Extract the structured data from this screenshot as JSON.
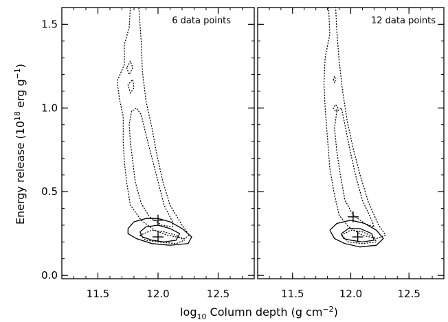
{
  "chart_data": {
    "type": "contour",
    "ylabel": {
      "main": "Energy release (10",
      "sup1": "18",
      "mid": " erg g",
      "sup2": "−1",
      "end": ")"
    },
    "xlabel": {
      "pre": "log",
      "sub": "10",
      "main": " Column depth (g cm",
      "sup": "−2",
      "end": ")"
    },
    "xlim": [
      11.2,
      12.8
    ],
    "ylim": [
      -0.02,
      1.6
    ],
    "xticks": [
      {
        "value": 11.5,
        "label": "11.5"
      },
      {
        "value": 12.0,
        "label": "12.0"
      },
      {
        "value": 12.5,
        "label": "12.5"
      }
    ],
    "yticks": [
      {
        "value": 0.0,
        "label": "0.0"
      },
      {
        "value": 0.5,
        "label": "0.5"
      },
      {
        "value": 1.0,
        "label": "1.0"
      },
      {
        "value": 1.5,
        "label": "1.5"
      }
    ],
    "panels": [
      {
        "label": "6 data points",
        "markers": [
          {
            "x": 12.0,
            "y": 0.33
          },
          {
            "x": 12.0,
            "y": 0.23
          }
        ],
        "solid_contours": [
          [
            [
              11.75,
              0.28
            ],
            [
              11.8,
              0.32
            ],
            [
              11.9,
              0.34
            ],
            [
              12.0,
              0.34
            ],
            [
              12.1,
              0.32
            ],
            [
              12.2,
              0.28
            ],
            [
              12.28,
              0.23
            ],
            [
              12.25,
              0.19
            ],
            [
              12.1,
              0.18
            ],
            [
              11.95,
              0.19
            ],
            [
              11.82,
              0.22
            ],
            [
              11.75,
              0.25
            ],
            [
              11.75,
              0.28
            ]
          ],
          [
            [
              11.85,
              0.26
            ],
            [
              11.9,
              0.29
            ],
            [
              12.0,
              0.3
            ],
            [
              12.1,
              0.28
            ],
            [
              12.18,
              0.25
            ],
            [
              12.15,
              0.21
            ],
            [
              12.05,
              0.2
            ],
            [
              11.95,
              0.21
            ],
            [
              11.87,
              0.23
            ],
            [
              11.85,
              0.26
            ]
          ]
        ],
        "dotted_contours": [
          [
            [
              11.77,
              1.6
            ],
            [
              11.76,
              1.48
            ],
            [
              11.72,
              1.38
            ],
            [
              11.72,
              1.26
            ],
            [
              11.66,
              1.16
            ],
            [
              11.68,
              1.05
            ],
            [
              11.71,
              0.95
            ],
            [
              11.71,
              0.8
            ],
            [
              11.72,
              0.68
            ],
            [
              11.74,
              0.55
            ],
            [
              11.77,
              0.42
            ],
            [
              11.86,
              0.33
            ],
            [
              11.97,
              0.27
            ],
            [
              12.08,
              0.24
            ],
            [
              12.22,
              0.22
            ],
            [
              12.26,
              0.24
            ],
            [
              12.2,
              0.3
            ],
            [
              12.1,
              0.42
            ],
            [
              12.04,
              0.56
            ],
            [
              11.99,
              0.72
            ],
            [
              11.95,
              0.88
            ],
            [
              11.9,
              1.04
            ],
            [
              11.87,
              1.22
            ],
            [
              11.86,
              1.4
            ],
            [
              11.84,
              1.6
            ]
          ],
          [
            [
              11.78,
              0.98
            ],
            [
              11.76,
              0.9
            ],
            [
              11.77,
              0.8
            ],
            [
              11.79,
              0.68
            ],
            [
              11.81,
              0.56
            ],
            [
              11.86,
              0.43
            ],
            [
              11.93,
              0.35
            ],
            [
              12.03,
              0.3
            ],
            [
              12.12,
              0.29
            ],
            [
              12.12,
              0.32
            ],
            [
              12.05,
              0.42
            ],
            [
              12.0,
              0.56
            ],
            [
              11.95,
              0.7
            ],
            [
              11.9,
              0.84
            ],
            [
              11.86,
              0.96
            ],
            [
              11.82,
              1.0
            ],
            [
              11.78,
              0.98
            ]
          ],
          [
            [
              11.85,
              0.24
            ],
            [
              11.95,
              0.27
            ],
            [
              12.05,
              0.26
            ],
            [
              12.15,
              0.24
            ],
            [
              12.22,
              0.21
            ],
            [
              12.15,
              0.19
            ],
            [
              12.0,
              0.2
            ],
            [
              11.9,
              0.21
            ],
            [
              11.85,
              0.24
            ]
          ],
          [
            [
              11.75,
              1.14
            ],
            [
              11.77,
              1.09
            ],
            [
              11.8,
              1.12
            ],
            [
              11.79,
              1.17
            ],
            [
              11.75,
              1.14
            ]
          ],
          [
            [
              11.74,
              1.24
            ],
            [
              11.76,
              1.2
            ],
            [
              11.79,
              1.24
            ],
            [
              11.77,
              1.28
            ],
            [
              11.74,
              1.24
            ]
          ]
        ]
      },
      {
        "label": "12 data points",
        "markers": [
          {
            "x": 12.02,
            "y": 0.35
          },
          {
            "x": 12.06,
            "y": 0.23
          }
        ],
        "solid_contours": [
          [
            [
              11.82,
              0.27
            ],
            [
              11.88,
              0.31
            ],
            [
              12.0,
              0.33
            ],
            [
              12.12,
              0.31
            ],
            [
              12.22,
              0.27
            ],
            [
              12.28,
              0.22
            ],
            [
              12.22,
              0.18
            ],
            [
              12.08,
              0.17
            ],
            [
              11.95,
              0.19
            ],
            [
              11.86,
              0.22
            ],
            [
              11.82,
              0.27
            ]
          ],
          [
            [
              11.92,
              0.25
            ],
            [
              11.98,
              0.28
            ],
            [
              12.08,
              0.28
            ],
            [
              12.18,
              0.25
            ],
            [
              12.2,
              0.21
            ],
            [
              12.1,
              0.2
            ],
            [
              12.0,
              0.21
            ],
            [
              11.94,
              0.22
            ],
            [
              11.92,
              0.25
            ]
          ]
        ],
        "dotted_contours": [
          [
            [
              11.81,
              1.6
            ],
            [
              11.82,
              1.44
            ],
            [
              11.78,
              1.3
            ],
            [
              11.77,
              1.15
            ],
            [
              11.78,
              1.0
            ],
            [
              11.8,
              0.82
            ],
            [
              11.82,
              0.64
            ],
            [
              11.86,
              0.48
            ],
            [
              11.9,
              0.36
            ],
            [
              11.98,
              0.29
            ],
            [
              12.1,
              0.24
            ],
            [
              12.22,
              0.22
            ],
            [
              12.3,
              0.24
            ],
            [
              12.24,
              0.3
            ],
            [
              12.15,
              0.44
            ],
            [
              12.08,
              0.6
            ],
            [
              12.02,
              0.76
            ],
            [
              11.97,
              0.92
            ],
            [
              11.93,
              1.1
            ],
            [
              11.9,
              1.28
            ],
            [
              11.88,
              1.46
            ],
            [
              11.87,
              1.6
            ]
          ],
          [
            [
              11.88,
              0.98
            ],
            [
              11.86,
              0.88
            ],
            [
              11.88,
              0.74
            ],
            [
              11.91,
              0.6
            ],
            [
              11.95,
              0.45
            ],
            [
              12.02,
              0.36
            ],
            [
              12.12,
              0.31
            ],
            [
              12.2,
              0.29
            ],
            [
              12.18,
              0.33
            ],
            [
              12.1,
              0.45
            ],
            [
              12.04,
              0.6
            ],
            [
              11.99,
              0.76
            ],
            [
              11.95,
              0.9
            ],
            [
              11.92,
              1.0
            ],
            [
              11.88,
              0.98
            ]
          ],
          [
            [
              11.92,
              0.24
            ],
            [
              12.0,
              0.27
            ],
            [
              12.1,
              0.26
            ],
            [
              12.2,
              0.23
            ],
            [
              12.22,
              0.2
            ],
            [
              12.1,
              0.19
            ],
            [
              11.98,
              0.2
            ],
            [
              11.92,
              0.24
            ]
          ],
          [
            [
              11.85,
              1.0
            ],
            [
              11.87,
              0.98
            ],
            [
              11.89,
              1.0
            ],
            [
              11.87,
              1.02
            ],
            [
              11.85,
              1.0
            ]
          ],
          [
            [
              11.85,
              1.17
            ],
            [
              11.86,
              1.15
            ],
            [
              11.87,
              1.17
            ],
            [
              11.86,
              1.19
            ],
            [
              11.85,
              1.17
            ]
          ]
        ]
      }
    ]
  }
}
